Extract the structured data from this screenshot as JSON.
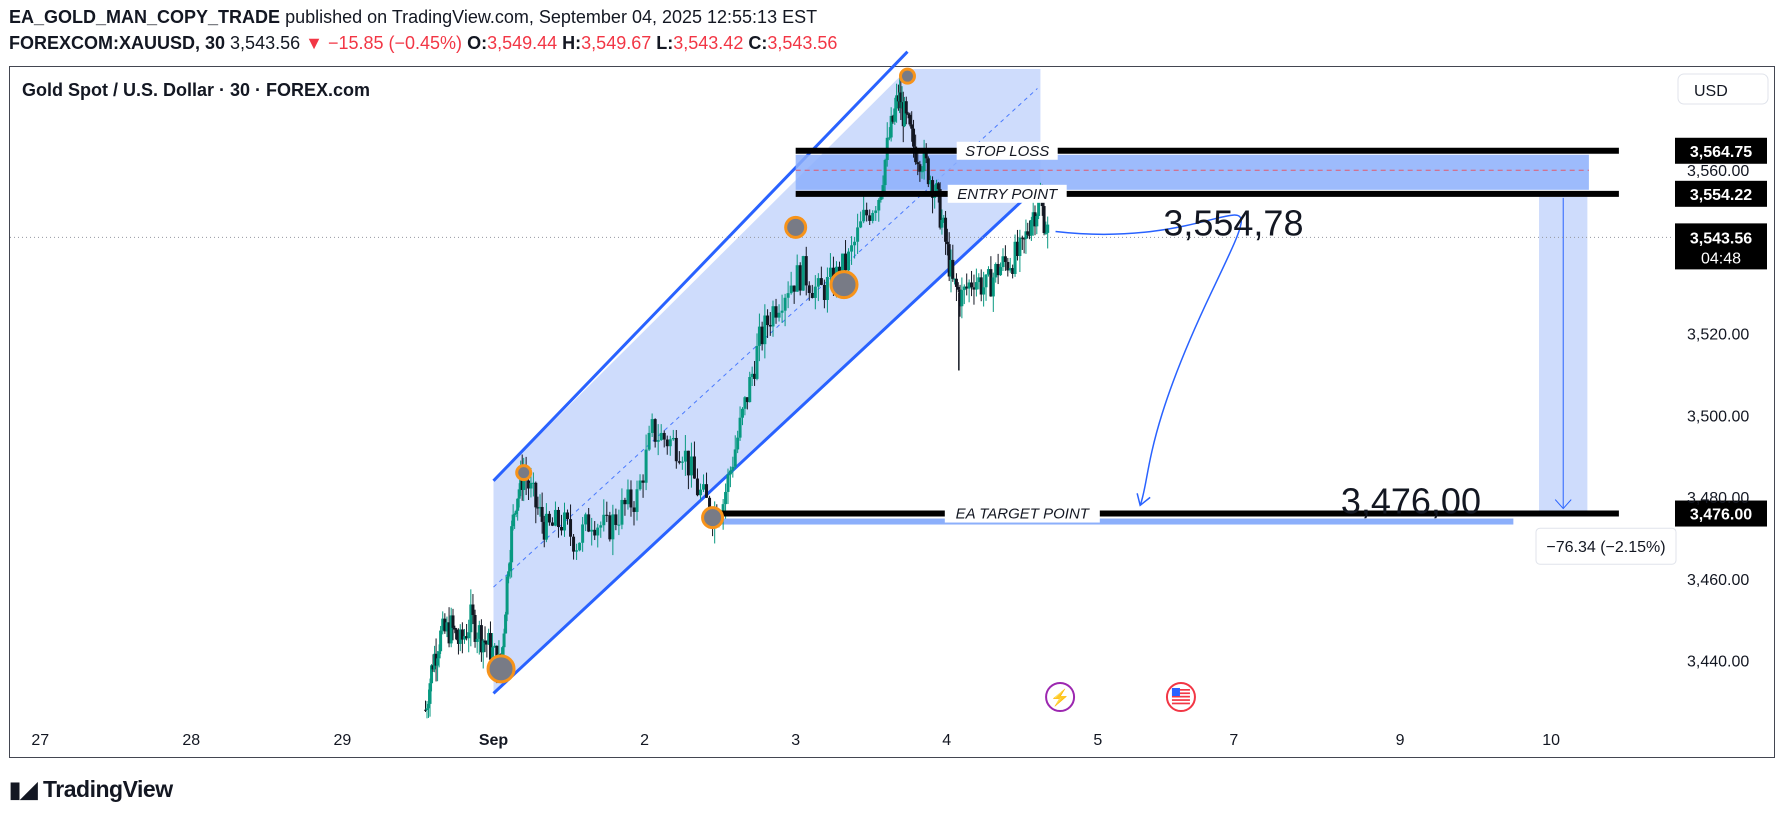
{
  "header": {
    "author": "EA_GOLD_MAN_COPY_TRADE",
    "published_text": "published on TradingView.com, September 04, 2025 12:55:13 EST",
    "symbol": "FOREXCOM:XAUUSD, 30",
    "price": "3,543.56",
    "change": "▼ −15.85 (−0.45%)",
    "o_label": "O:",
    "o_value": "3,549.44",
    "h_label": "H:",
    "h_value": "3,549.67",
    "l_label": "L:",
    "l_value": "3,543.42",
    "c_label": "C:",
    "c_value": "3,543.56"
  },
  "footer": {
    "logo_text": "TradingView",
    "logo_icon": "tradingview-logo-icon"
  },
  "chart_data": {
    "type": "candlestick",
    "title": "Gold Spot / U.S. Dollar · 30 · FOREX.com",
    "currency": "USD",
    "ylim": [
      3425,
      3585
    ],
    "y_ticks": [
      {
        "value": 3560,
        "label": "3,560.00"
      },
      {
        "value": 3520,
        "label": "3,520.00"
      },
      {
        "value": 3500,
        "label": "3,500.00"
      },
      {
        "value": 3480,
        "label": "3,480.00"
      },
      {
        "value": 3460,
        "label": "3,460.00"
      },
      {
        "value": 3440,
        "label": "3,440.00"
      }
    ],
    "x_ticks": [
      {
        "label": "27",
        "t": -5.9
      },
      {
        "label": "28",
        "t": -4.9
      },
      {
        "label": "29",
        "t": -3.9
      },
      {
        "label": "Sep",
        "t": -2.9
      },
      {
        "label": "2",
        "t": -1.9
      },
      {
        "label": "3",
        "t": -0.9
      },
      {
        "label": "4",
        "t": 0.1
      },
      {
        "label": "5",
        "t": 1.1
      },
      {
        "label": "7",
        "t": 2.0
      },
      {
        "label": "9",
        "t": 3.1
      },
      {
        "label": "10",
        "t": 4.1
      }
    ],
    "xlim": [
      -6.1,
      4.9
    ],
    "price_path": [
      [
        -3.35,
        3428
      ],
      [
        -3.3,
        3440
      ],
      [
        -3.25,
        3446
      ],
      [
        -3.18,
        3448
      ],
      [
        -3.12,
        3444
      ],
      [
        -3.05,
        3450
      ],
      [
        -2.98,
        3446
      ],
      [
        -2.92,
        3443
      ],
      [
        -2.85,
        3438
      ],
      [
        -2.8,
        3465
      ],
      [
        -2.75,
        3480
      ],
      [
        -2.7,
        3486
      ],
      [
        -2.62,
        3478
      ],
      [
        -2.55,
        3472
      ],
      [
        -2.45,
        3474
      ],
      [
        -2.35,
        3469
      ],
      [
        -2.25,
        3475
      ],
      [
        -2.15,
        3472
      ],
      [
        -2.05,
        3477
      ],
      [
        -1.95,
        3480
      ],
      [
        -1.85,
        3496
      ],
      [
        -1.75,
        3494
      ],
      [
        -1.65,
        3492
      ],
      [
        -1.55,
        3482
      ],
      [
        -1.45,
        3476
      ],
      [
        -1.38,
        3479
      ],
      [
        -1.3,
        3492
      ],
      [
        -1.22,
        3505
      ],
      [
        -1.14,
        3518
      ],
      [
        -1.05,
        3526
      ],
      [
        -0.95,
        3532
      ],
      [
        -0.85,
        3535
      ],
      [
        -0.75,
        3530
      ],
      [
        -0.65,
        3533
      ],
      [
        -0.55,
        3538
      ],
      [
        -0.45,
        3548
      ],
      [
        -0.35,
        3554
      ],
      [
        -0.28,
        3568
      ],
      [
        -0.22,
        3578
      ],
      [
        -0.18,
        3573
      ],
      [
        -0.12,
        3566
      ],
      [
        -0.05,
        3562
      ],
      [
        0.02,
        3556
      ],
      [
        0.08,
        3545
      ],
      [
        0.14,
        3532
      ],
      [
        0.2,
        3529
      ],
      [
        0.28,
        3534
      ],
      [
        0.36,
        3531
      ],
      [
        0.44,
        3536
      ],
      [
        0.52,
        3538
      ],
      [
        0.6,
        3540
      ],
      [
        0.66,
        3549
      ],
      [
        0.72,
        3552
      ],
      [
        0.78,
        3543
      ]
    ],
    "channel": {
      "upper": [
        [
          -2.9,
          3484
        ],
        [
          -0.16,
          3589
        ]
      ],
      "lower": [
        [
          -2.9,
          3432
        ],
        [
          0.7,
          3556
        ]
      ],
      "mid": [
        [
          -2.9,
          3458
        ],
        [
          0.7,
          3580
        ]
      ]
    },
    "levels": [
      {
        "name": "STOP LOSS",
        "value": 3564.75,
        "tag": "3,564.75"
      },
      {
        "name": "ENTRY POINT",
        "value": 3554.22,
        "tag": "3,554.22"
      },
      {
        "name": "EA TARGET POINT",
        "value": 3476.0,
        "tag": "3,476.00"
      }
    ],
    "last_price": {
      "value": 3543.56,
      "tag": "3,543.56",
      "countdown": "04:48"
    },
    "annotations": [
      {
        "text": "3,554,78",
        "t": 1.6,
        "y": 3547
      },
      {
        "text": "3,476,00",
        "t": 3.9,
        "y": 3479
      },
      {
        "text": "−76.34 (−2.15%)",
        "t": 4.45,
        "y": 3468
      }
    ],
    "pivots": [
      {
        "t": -2.85,
        "y": 3438,
        "size": "large"
      },
      {
        "t": -2.7,
        "y": 3486,
        "size": "small"
      },
      {
        "t": -1.45,
        "y": 3475,
        "size": "medium"
      },
      {
        "t": -0.9,
        "y": 3546,
        "size": "medium"
      },
      {
        "t": -0.58,
        "y": 3532,
        "size": "large"
      },
      {
        "t": -0.16,
        "y": 3583,
        "size": "small"
      }
    ],
    "event_icons": [
      {
        "name": "economic-event-icon",
        "t": 0.85
      },
      {
        "name": "us-flag-icon",
        "t": 1.65
      }
    ],
    "colors": {
      "up": "#089981",
      "down": "#131722",
      "channel_fill": "#c5d6fb",
      "channel_line": "#2962ff",
      "zone_fill": "#8caffb",
      "pivot": "#f7931a",
      "level_line": "#000000",
      "label_bg": "#000000",
      "label_text": "#ffffff"
    }
  }
}
